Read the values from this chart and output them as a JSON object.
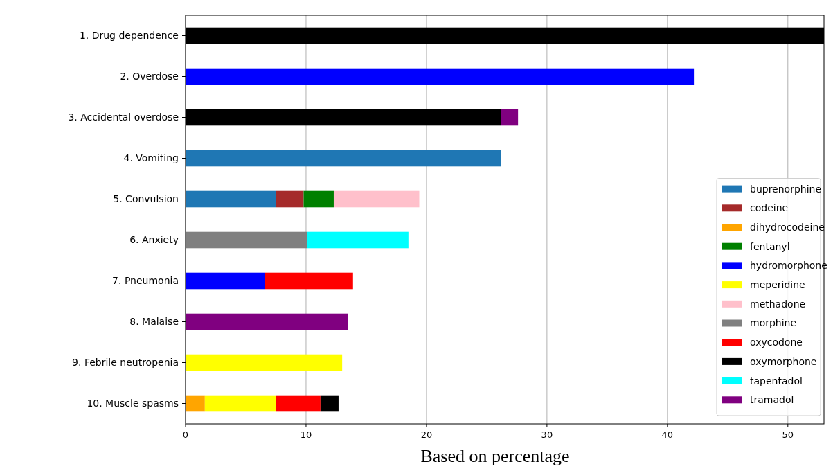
{
  "chart_data": {
    "type": "bar",
    "orientation": "horizontal",
    "stacked": true,
    "xlabel": "Based on percentage",
    "categories": [
      "1. Drug dependence",
      "2. Overdose",
      "3. Accidental overdose",
      "4. Vomiting",
      "5. Convulsion",
      "6. Anxiety",
      "7. Pneumonia",
      "8. Malaise",
      "9. Febrile neutropenia",
      "10. Muscle spasms"
    ],
    "series": [
      {
        "name": "buprenorphine",
        "color": "#1f77b4",
        "values": [
          null,
          null,
          null,
          26.2,
          7.5,
          null,
          null,
          null,
          null,
          null
        ]
      },
      {
        "name": "codeine",
        "color": "#a52a2a",
        "values": [
          null,
          null,
          null,
          null,
          2.3,
          null,
          null,
          null,
          null,
          null
        ]
      },
      {
        "name": "dihydrocodeine",
        "color": "#ffa500",
        "values": [
          null,
          null,
          null,
          null,
          null,
          null,
          null,
          null,
          null,
          1.6
        ]
      },
      {
        "name": "fentanyl",
        "color": "#008000",
        "values": [
          null,
          null,
          null,
          null,
          2.5,
          null,
          null,
          null,
          null,
          null
        ]
      },
      {
        "name": "hydromorphone",
        "color": "#0000ff",
        "values": [
          null,
          42.2,
          null,
          null,
          null,
          null,
          6.6,
          null,
          null,
          null
        ]
      },
      {
        "name": "meperidine",
        "color": "#ffff00",
        "values": [
          null,
          null,
          null,
          null,
          null,
          null,
          null,
          null,
          13.0,
          5.9
        ]
      },
      {
        "name": "methadone",
        "color": "#ffc0cb",
        "values": [
          null,
          null,
          null,
          null,
          7.1,
          null,
          null,
          null,
          null,
          null
        ]
      },
      {
        "name": "morphine",
        "color": "#808080",
        "values": [
          null,
          null,
          null,
          null,
          null,
          10.1,
          null,
          null,
          null,
          null
        ]
      },
      {
        "name": "oxycodone",
        "color": "#ff0000",
        "values": [
          null,
          null,
          null,
          null,
          null,
          null,
          7.3,
          null,
          null,
          3.7
        ]
      },
      {
        "name": "oxymorphone",
        "color": "#000000",
        "values": [
          53,
          null,
          26.2,
          null,
          null,
          null,
          null,
          null,
          null,
          1.5
        ]
      },
      {
        "name": "tapentadol",
        "color": "#00ffff",
        "values": [
          null,
          null,
          null,
          null,
          null,
          8.4,
          null,
          null,
          null,
          null
        ]
      },
      {
        "name": "tramadol",
        "color": "#800080",
        "values": [
          null,
          null,
          1.4,
          null,
          null,
          null,
          null,
          13.5,
          null,
          null
        ]
      }
    ],
    "xlim": [
      0,
      53
    ],
    "xticks": [
      0,
      10,
      20,
      30,
      40,
      50
    ],
    "grid": "x",
    "legend": "bottom right"
  }
}
